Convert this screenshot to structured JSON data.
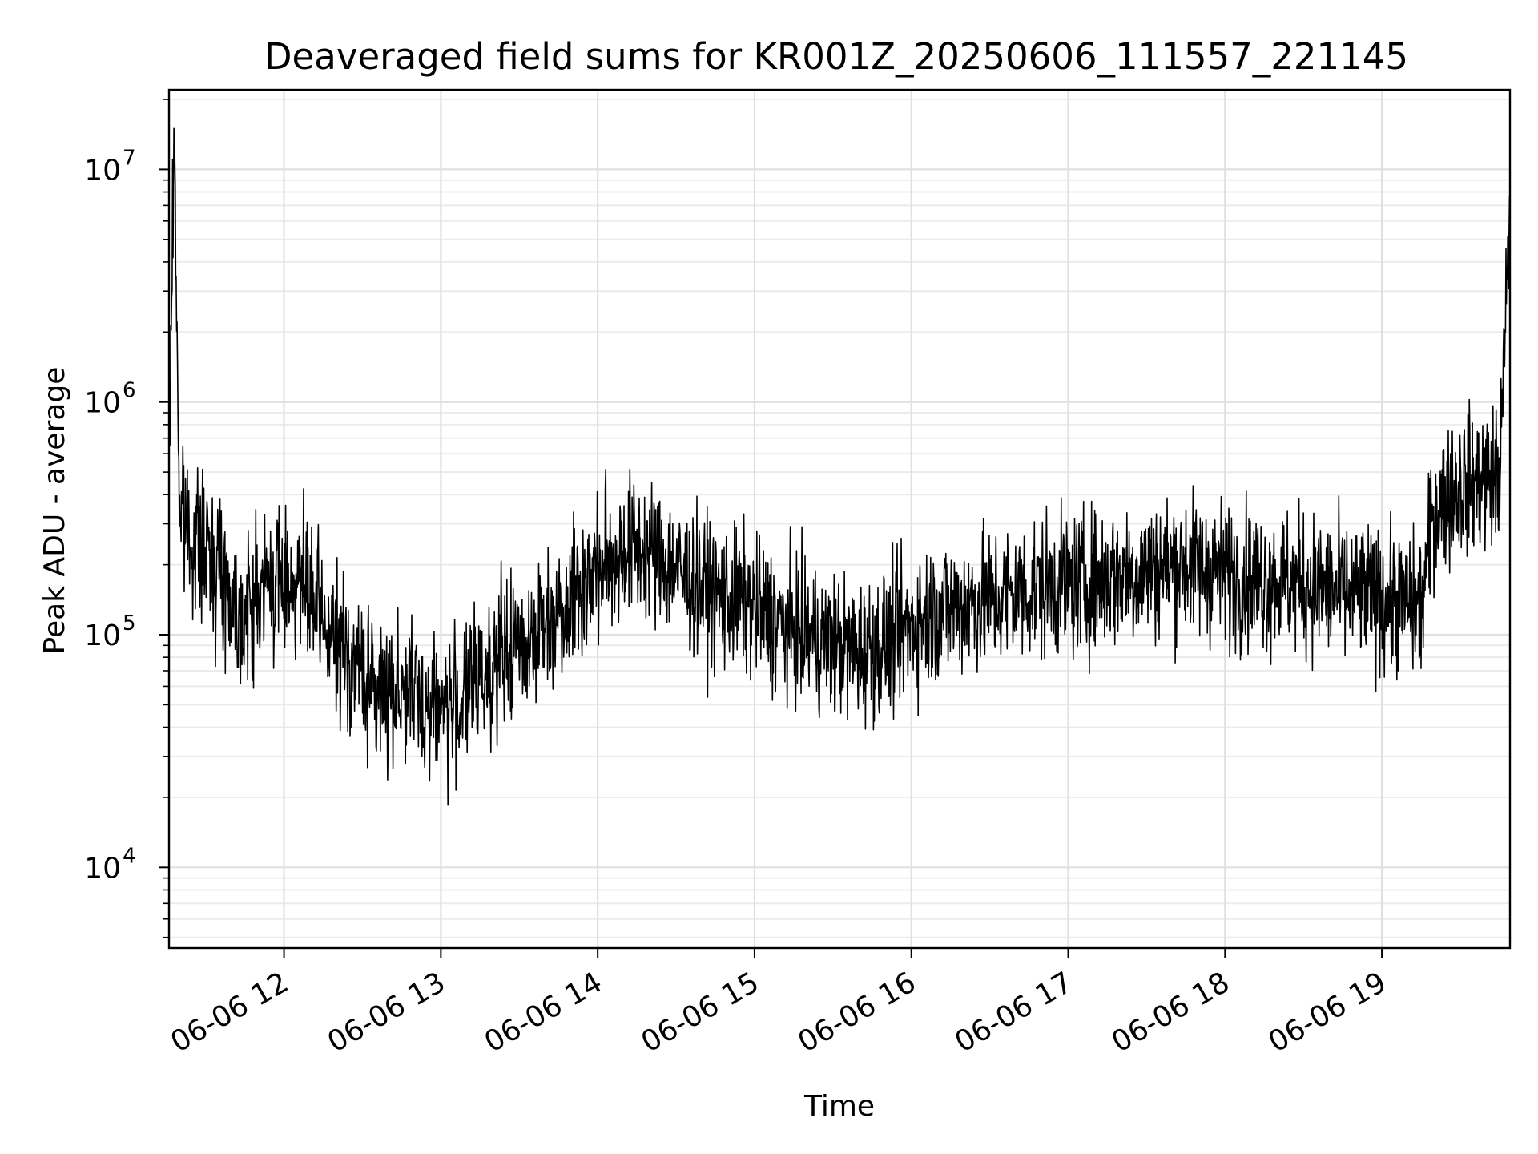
{
  "chart_data": {
    "type": "line",
    "title": "Deaveraged field sums for KR001Z_20250606_111557_221145",
    "xlabel": "Time",
    "ylabel": "Peak ADU - average",
    "y_scale": "log",
    "ylim": [
      4500,
      22000000
    ],
    "xlim": [
      "06-06 11:16",
      "06-06 19:49"
    ],
    "grid": true,
    "line_color": "#000000",
    "x_ticks": [
      {
        "value": "06-06 12:00",
        "label": "06-06 12"
      },
      {
        "value": "06-06 13:00",
        "label": "06-06 13"
      },
      {
        "value": "06-06 14:00",
        "label": "06-06 14"
      },
      {
        "value": "06-06 15:00",
        "label": "06-06 15"
      },
      {
        "value": "06-06 16:00",
        "label": "06-06 16"
      },
      {
        "value": "06-06 17:00",
        "label": "06-06 17"
      },
      {
        "value": "06-06 18:00",
        "label": "06-06 18"
      },
      {
        "value": "06-06 19:00",
        "label": "06-06 19"
      }
    ],
    "y_ticks": [
      {
        "value": 10000,
        "base": "10",
        "exp": "4"
      },
      {
        "value": 100000,
        "base": "10",
        "exp": "5"
      },
      {
        "value": 1000000,
        "base": "10",
        "exp": "6"
      },
      {
        "value": 10000000,
        "base": "10",
        "exp": "7"
      }
    ],
    "series": [
      {
        "x": [
          "06-06 11:16",
          "06-06 11:18",
          "06-06 11:20",
          "06-06 11:25",
          "06-06 11:30",
          "06-06 11:35",
          "06-06 11:40",
          "06-06 11:45",
          "06-06 11:50",
          "06-06 11:55",
          "06-06 12:00",
          "06-06 12:05",
          "06-06 12:10",
          "06-06 12:15",
          "06-06 12:20",
          "06-06 12:25",
          "06-06 12:30",
          "06-06 12:35",
          "06-06 12:40",
          "06-06 12:45",
          "06-06 12:50",
          "06-06 12:55",
          "06-06 13:00",
          "06-06 13:05",
          "06-06 13:10",
          "06-06 13:15",
          "06-06 13:20",
          "06-06 13:25",
          "06-06 13:30",
          "06-06 13:35",
          "06-06 13:40",
          "06-06 13:45",
          "06-06 13:50",
          "06-06 13:55",
          "06-06 14:00",
          "06-06 14:05",
          "06-06 14:10",
          "06-06 14:15",
          "06-06 14:20",
          "06-06 14:25",
          "06-06 14:30",
          "06-06 14:35",
          "06-06 14:40",
          "06-06 14:45",
          "06-06 14:50",
          "06-06 14:55",
          "06-06 15:00",
          "06-06 15:05",
          "06-06 15:10",
          "06-06 15:15",
          "06-06 15:20",
          "06-06 15:25",
          "06-06 15:30",
          "06-06 15:35",
          "06-06 15:40",
          "06-06 15:45",
          "06-06 15:50",
          "06-06 15:55",
          "06-06 16:00",
          "06-06 16:05",
          "06-06 16:10",
          "06-06 16:15",
          "06-06 16:20",
          "06-06 16:25",
          "06-06 16:30",
          "06-06 16:35",
          "06-06 16:40",
          "06-06 16:45",
          "06-06 16:50",
          "06-06 16:55",
          "06-06 17:00",
          "06-06 17:05",
          "06-06 17:10",
          "06-06 17:15",
          "06-06 17:20",
          "06-06 17:25",
          "06-06 17:30",
          "06-06 17:35",
          "06-06 17:40",
          "06-06 17:45",
          "06-06 17:50",
          "06-06 17:55",
          "06-06 18:00",
          "06-06 18:05",
          "06-06 18:10",
          "06-06 18:15",
          "06-06 18:20",
          "06-06 18:25",
          "06-06 18:30",
          "06-06 18:35",
          "06-06 18:40",
          "06-06 18:45",
          "06-06 18:50",
          "06-06 18:55",
          "06-06 19:00",
          "06-06 19:05",
          "06-06 19:10",
          "06-06 19:15",
          "06-06 19:20",
          "06-06 19:25",
          "06-06 19:30",
          "06-06 19:35",
          "06-06 19:40",
          "06-06 19:45",
          "06-06 19:49"
        ],
        "y": [
          500000,
          15000000,
          350000,
          260000,
          220000,
          210000,
          140000,
          120000,
          150000,
          170000,
          170000,
          180000,
          140000,
          110000,
          90000,
          80000,
          70000,
          55000,
          60000,
          58000,
          55000,
          50000,
          50000,
          48000,
          55000,
          65000,
          75000,
          80000,
          90000,
          100000,
          110000,
          130000,
          150000,
          170000,
          190000,
          210000,
          230000,
          240000,
          230000,
          210000,
          190000,
          170000,
          160000,
          150000,
          140000,
          140000,
          130000,
          120000,
          110000,
          105000,
          100000,
          95000,
          90000,
          88000,
          85000,
          88000,
          92000,
          100000,
          110000,
          120000,
          125000,
          130000,
          135000,
          138000,
          140000,
          145000,
          150000,
          155000,
          160000,
          165000,
          160000,
          165000,
          170000,
          175000,
          180000,
          185000,
          190000,
          195000,
          200000,
          200000,
          195000,
          190000,
          185000,
          180000,
          175000,
          172000,
          170000,
          168000,
          165000,
          160000,
          155000,
          150000,
          148000,
          145000,
          140000,
          138000,
          135000,
          130000,
          350000,
          400000,
          430000,
          460000,
          470000,
          480000,
          6500000
        ]
      }
    ]
  }
}
